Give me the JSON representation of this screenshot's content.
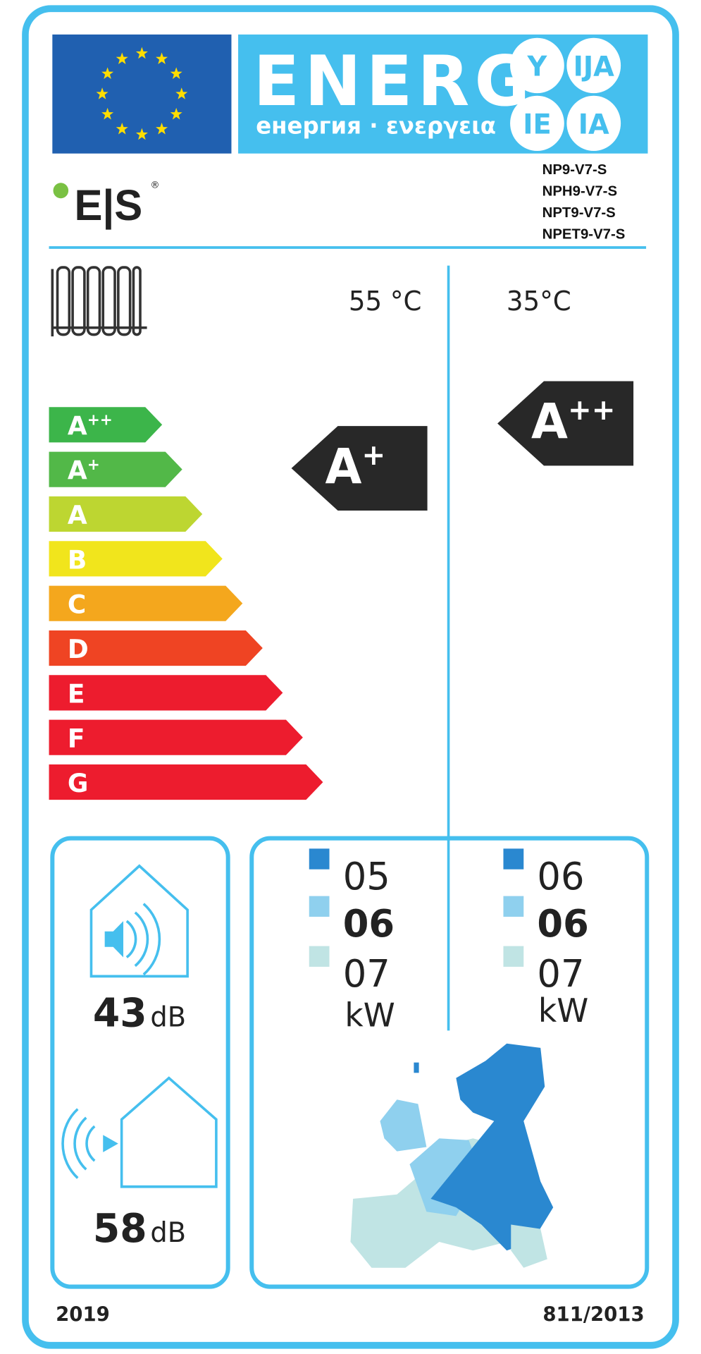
{
  "header": {
    "title": "ENERG",
    "subtitle": "енергия · ενεργεια",
    "suffixes": [
      "Y",
      "IJA",
      "IE",
      "IA"
    ]
  },
  "brand": {
    "name": "E|S",
    "mark": "®"
  },
  "models": [
    "NP9-V7-S",
    "NPH9-V7-S",
    "NPT9-V7-S",
    "NPET9-V7-S"
  ],
  "temperatures": [
    "55 °C",
    "35°C"
  ],
  "scale": [
    {
      "letter": "A",
      "sup": "++",
      "color": "#3cb54a"
    },
    {
      "letter": "A",
      "sup": "+",
      "color": "#52b848"
    },
    {
      "letter": "A",
      "sup": "",
      "color": "#bdd631"
    },
    {
      "letter": "B",
      "sup": "",
      "color": "#f1e51c"
    },
    {
      "letter": "C",
      "sup": "",
      "color": "#f4a71d"
    },
    {
      "letter": "D",
      "sup": "",
      "color": "#ef4423"
    },
    {
      "letter": "E",
      "sup": "",
      "color": "#ed1c2e"
    },
    {
      "letter": "F",
      "sup": "",
      "color": "#ed1c2e"
    },
    {
      "letter": "G",
      "sup": "",
      "color": "#ed1c2e"
    }
  ],
  "ratings": [
    {
      "letter": "A",
      "sup": "+"
    },
    {
      "letter": "A",
      "sup": "++"
    }
  ],
  "noise": [
    {
      "value": "43",
      "unit": "dB"
    },
    {
      "value": "58",
      "unit": "dB"
    }
  ],
  "power": [
    {
      "values": [
        "05",
        "06",
        "07"
      ],
      "unit": "kW"
    },
    {
      "values": [
        "06",
        "06",
        "07"
      ],
      "unit": "kW"
    }
  ],
  "footer": {
    "year": "2019",
    "regulation": "811/2013"
  }
}
